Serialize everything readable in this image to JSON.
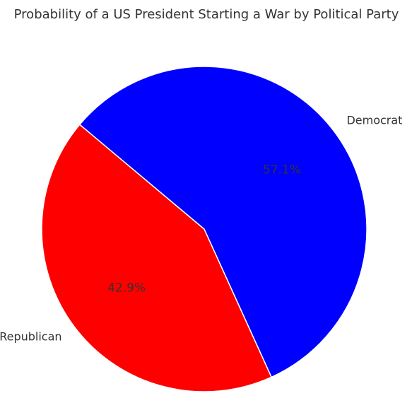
{
  "chart_data": {
    "type": "pie",
    "title": "Probability of a US President Starting a War by Political Party",
    "categories": [
      "Republican",
      "Democrat"
    ],
    "values": [
      42.9,
      57.1
    ],
    "percent_labels": [
      "42.9%",
      "57.1%"
    ],
    "colors": [
      "#ff0000",
      "#0000ff"
    ],
    "edge_color": "#ffffff",
    "legend": "none"
  }
}
